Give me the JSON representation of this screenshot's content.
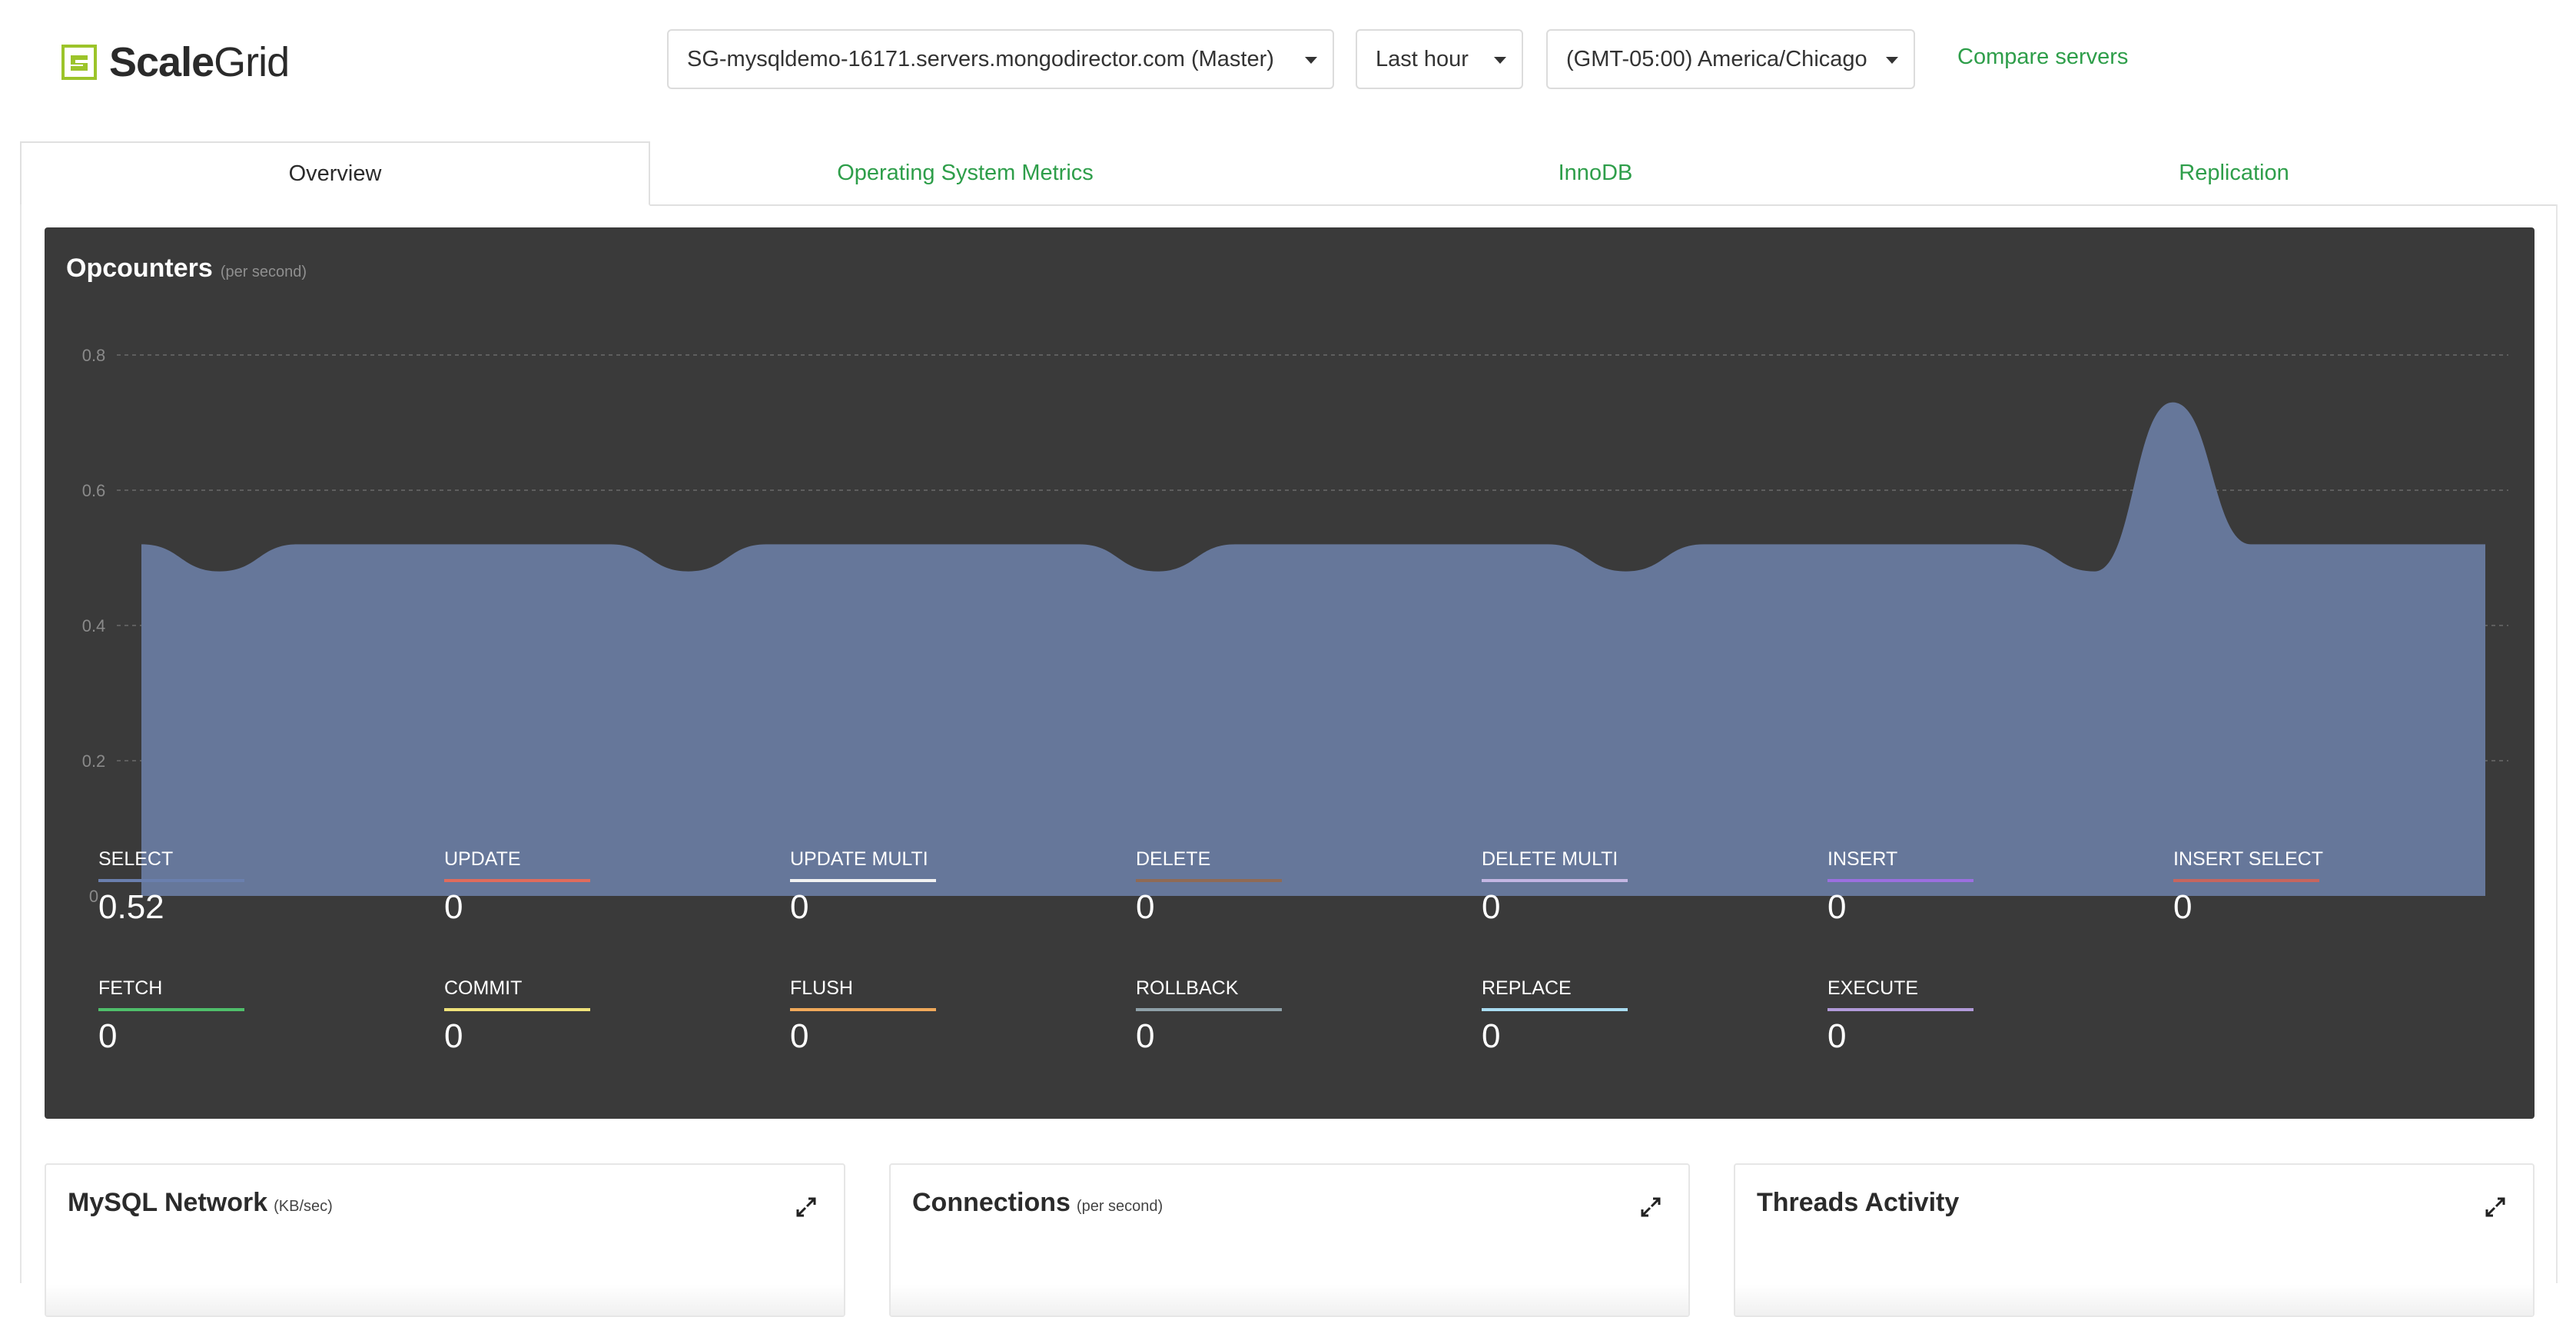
{
  "brand": {
    "name_bold": "Scale",
    "name_thin": "Grid"
  },
  "header": {
    "server_select": "SG-mysqldemo-16171.servers.mongodirector.com (Master)",
    "range_select": "Last hour",
    "timezone_select": "(GMT-05:00) America/Chicago",
    "compare_link": "Compare servers"
  },
  "tabs": [
    {
      "label": "Overview",
      "active": true
    },
    {
      "label": "Operating System Metrics",
      "active": false
    },
    {
      "label": "InnoDB",
      "active": false
    },
    {
      "label": "Replication",
      "active": false
    }
  ],
  "opcounters": {
    "title": "Opcounters",
    "subtitle": "(per second)"
  },
  "chart_data": {
    "type": "area",
    "title": "Opcounters",
    "subtitle": "(per second)",
    "y_ticks": [
      "0",
      "0.2",
      "0.4",
      "0.6",
      "0.8"
    ],
    "ylim": [
      0,
      0.8
    ],
    "grid": true,
    "series": [
      {
        "name": "SELECT",
        "color": "#66779a",
        "values": [
          0.52,
          0.48,
          0.52,
          0.52,
          0.52,
          0.52,
          0.52,
          0.48,
          0.52,
          0.52,
          0.52,
          0.52,
          0.52,
          0.48,
          0.52,
          0.52,
          0.52,
          0.52,
          0.52,
          0.48,
          0.52,
          0.52,
          0.52,
          0.52,
          0.52,
          0.48,
          0.73,
          0.52,
          0.52,
          0.52,
          0.52
        ]
      }
    ]
  },
  "metrics": [
    {
      "name": "SELECT",
      "value": "0.52",
      "color": "#6a7fae"
    },
    {
      "name": "UPDATE",
      "value": "0",
      "color": "#e06b5c"
    },
    {
      "name": "UPDATE MULTI",
      "value": "0",
      "color": "#f2f2f2"
    },
    {
      "name": "DELETE",
      "value": "0",
      "color": "#8f6a55"
    },
    {
      "name": "DELETE MULTI",
      "value": "0",
      "color": "#c3b6e3"
    },
    {
      "name": "INSERT",
      "value": "0",
      "color": "#9b6fe0"
    },
    {
      "name": "INSERT SELECT",
      "value": "0",
      "color": "#c7655e"
    },
    {
      "name": "FETCH",
      "value": "0",
      "color": "#4fbf6a"
    },
    {
      "name": "COMMIT",
      "value": "0",
      "color": "#efe27a"
    },
    {
      "name": "FLUSH",
      "value": "0",
      "color": "#f0a95a"
    },
    {
      "name": "ROLLBACK",
      "value": "0",
      "color": "#8ea0a8"
    },
    {
      "name": "REPLACE",
      "value": "0",
      "color": "#a9dcf2"
    },
    {
      "name": "EXECUTE",
      "value": "0",
      "color": "#b19ad9"
    }
  ],
  "cards": [
    {
      "title": "MySQL Network",
      "subtitle": "(KB/sec)"
    },
    {
      "title": "Connections",
      "subtitle": "(per second)"
    },
    {
      "title": "Threads Activity",
      "subtitle": ""
    }
  ],
  "colors": {
    "accent": "#2e9e4a",
    "panel_bg": "#3a3a3a",
    "logo_green": "#9cc42a"
  }
}
